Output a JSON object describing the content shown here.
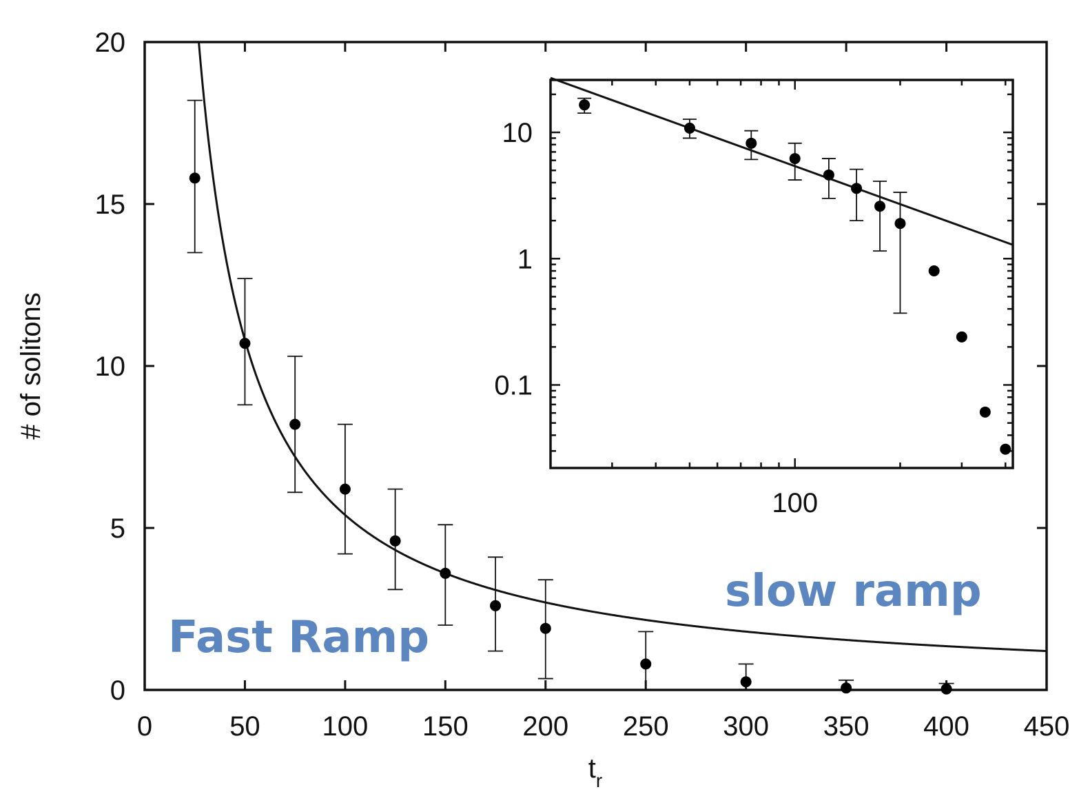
{
  "chart_data": [
    {
      "type": "scatter",
      "xlabel": "t",
      "xlabel_sub": "r",
      "ylabel": "# of solitons",
      "xlim": [
        0,
        450
      ],
      "ylim": [
        0,
        20
      ],
      "x_ticks": [
        "0",
        "50",
        "100",
        "150",
        "200",
        "250",
        "300",
        "350",
        "400",
        "450"
      ],
      "y_ticks": [
        "0",
        "5",
        "10",
        "15",
        "20"
      ],
      "grid": false,
      "series": [
        {
          "kind": "points-with-errorbars",
          "points": [
            {
              "x": 25,
              "y": 15.8,
              "lo": 13.5,
              "hi": 18.2
            },
            {
              "x": 50,
              "y": 10.7,
              "lo": 8.8,
              "hi": 12.7
            },
            {
              "x": 75,
              "y": 8.2,
              "lo": 6.1,
              "hi": 10.3
            },
            {
              "x": 100,
              "y": 6.2,
              "lo": 4.2,
              "hi": 8.2
            },
            {
              "x": 125,
              "y": 4.6,
              "lo": 3.1,
              "hi": 6.2
            },
            {
              "x": 150,
              "y": 3.6,
              "lo": 2.0,
              "hi": 5.1
            },
            {
              "x": 175,
              "y": 2.6,
              "lo": 1.2,
              "hi": 4.1
            },
            {
              "x": 200,
              "y": 1.9,
              "lo": 0.35,
              "hi": 3.4
            },
            {
              "x": 250,
              "y": 0.8,
              "lo": null,
              "hi": 1.8
            },
            {
              "x": 300,
              "y": 0.25,
              "lo": null,
              "hi": 0.8
            },
            {
              "x": 350,
              "y": 0.06,
              "lo": null,
              "hi": 0.3
            },
            {
              "x": 400,
              "y": 0.03,
              "lo": null,
              "hi": 0.2
            }
          ]
        },
        {
          "kind": "fit-curve",
          "formula": "A/x",
          "A": 540
        }
      ],
      "annotations": [
        {
          "text": "Fast Ramp",
          "color": "#5b86c0"
        },
        {
          "text": "slow ramp",
          "color": "#5b86c0"
        }
      ]
    },
    {
      "type": "scatter",
      "scale": "log-log",
      "xlim": [
        20,
        420
      ],
      "ylim": [
        0.022,
        26
      ],
      "x_ticks": [
        "100"
      ],
      "y_ticks": [
        "10",
        "1",
        "0.1"
      ],
      "grid": false,
      "series": [
        {
          "kind": "points-with-errorbars",
          "points": [
            {
              "x": 25,
              "y": 16.5,
              "lo": 14.2,
              "hi": 18.6
            },
            {
              "x": 50,
              "y": 10.8,
              "lo": 9.0,
              "hi": 12.7
            },
            {
              "x": 75,
              "y": 8.2,
              "lo": 6.1,
              "hi": 10.3
            },
            {
              "x": 100,
              "y": 6.2,
              "lo": 4.2,
              "hi": 8.2
            },
            {
              "x": 125,
              "y": 4.6,
              "lo": 3.0,
              "hi": 6.2
            },
            {
              "x": 150,
              "y": 3.6,
              "lo": 2.0,
              "hi": 5.1
            },
            {
              "x": 175,
              "y": 2.6,
              "lo": 1.15,
              "hi": 4.1
            },
            {
              "x": 200,
              "y": 1.9,
              "lo": 0.37,
              "hi": 3.35
            },
            {
              "x": 250,
              "y": 0.8,
              "lo": null,
              "hi": null
            },
            {
              "x": 300,
              "y": 0.24,
              "lo": null,
              "hi": null
            },
            {
              "x": 350,
              "y": 0.061,
              "lo": null,
              "hi": null
            },
            {
              "x": 400,
              "y": 0.031,
              "lo": null,
              "hi": null
            }
          ]
        },
        {
          "kind": "fit-line",
          "formula": "A/x",
          "A": 540
        }
      ]
    }
  ],
  "colors": {
    "axis": "#111111",
    "marker": "#000000",
    "annotation": "#5b86c0"
  }
}
